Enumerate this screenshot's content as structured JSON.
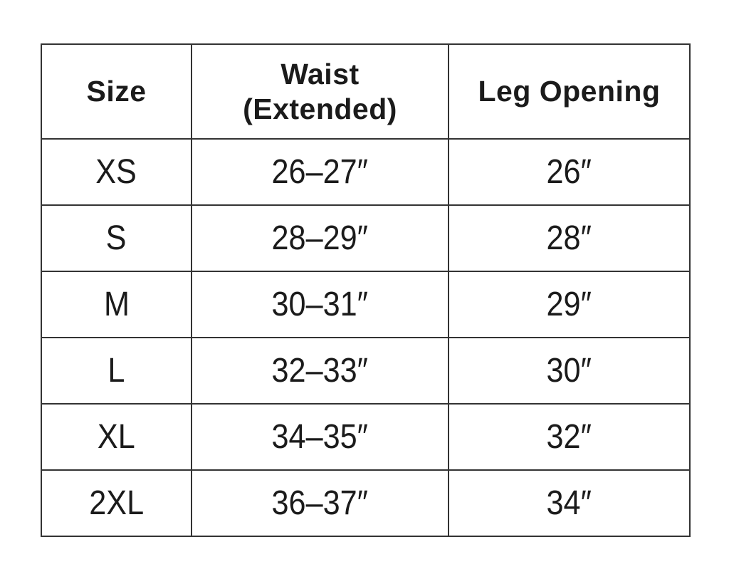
{
  "colors": {
    "background": "#ffffff",
    "border": "#333333",
    "text": "#1b1b1b"
  },
  "chart_data": {
    "type": "table",
    "columns": [
      {
        "label": "Size",
        "lines": [
          "Size"
        ]
      },
      {
        "label": "Waist (Extended)",
        "lines": [
          "Waist",
          "(Extended)"
        ]
      },
      {
        "label": "Leg Opening",
        "lines": [
          "Leg Opening"
        ]
      }
    ],
    "rows": [
      {
        "size": "XS",
        "waist_extended": "26–27″",
        "leg_opening": "26″"
      },
      {
        "size": "S",
        "waist_extended": "28–29″",
        "leg_opening": "28″"
      },
      {
        "size": "M",
        "waist_extended": "30–31″",
        "leg_opening": "29″"
      },
      {
        "size": "L",
        "waist_extended": "32–33″",
        "leg_opening": "30″"
      },
      {
        "size": "XL",
        "waist_extended": "34–35″",
        "leg_opening": "32″"
      },
      {
        "size": "2XL",
        "waist_extended": "36–37″",
        "leg_opening": "34″"
      }
    ]
  }
}
